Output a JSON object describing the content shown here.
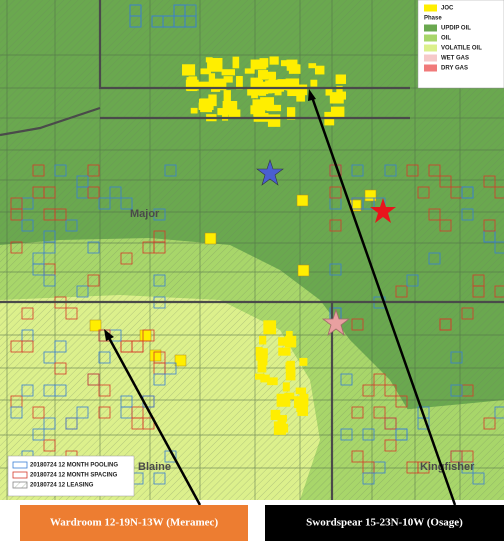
{
  "map_legend": {
    "items": [
      {
        "label": "JOC",
        "color": "#ffee00"
      },
      {
        "label": "Phase"
      },
      {
        "label": "UPDIP OIL",
        "color": "#6aa84f"
      },
      {
        "label": "OIL",
        "color": "#a8d66a"
      },
      {
        "label": "VOLATILE OIL",
        "color": "#dcf08c"
      },
      {
        "label": "WET GAS",
        "color": "#f6c9c9"
      },
      {
        "label": "DRY GAS",
        "color": "#f07a7a"
      }
    ]
  },
  "activity_legend": {
    "items": [
      {
        "label": "20180724 12 MONTH POOLING",
        "color": "#3a7fd5"
      },
      {
        "label": "20180724 12 MONTH SPACING",
        "color": "#d63a2a"
      },
      {
        "label": "20180724 12 LEASING",
        "color": "#888888"
      }
    ]
  },
  "counties": [
    "Major",
    "Blaine",
    "Kingfisher"
  ],
  "callouts": [
    {
      "label": "Wardroom 12-19N-13W (Meramec)",
      "color": "#ed7d31"
    },
    {
      "label": "Swordspear 15-23N-10W (Osage)",
      "color": "#000000"
    }
  ]
}
